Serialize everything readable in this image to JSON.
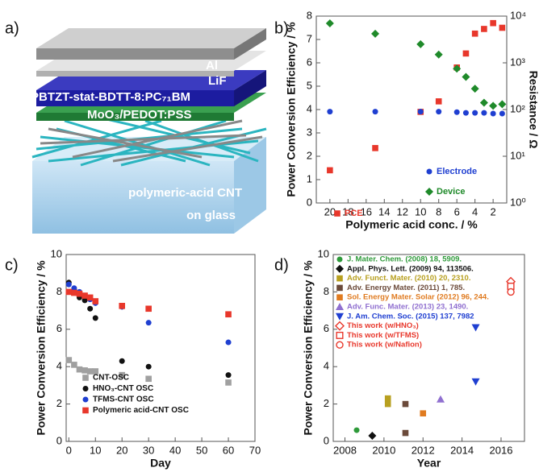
{
  "panels": [
    "a)",
    "b)",
    "c)",
    "d)"
  ],
  "device_stack": {
    "layers": [
      "Al",
      "LiF",
      "PBTZT-stat-BDTT-8:PC₇₁BM",
      "MoO₃/PEDOT:PSS"
    ],
    "substrate": [
      "polymeric-acid CNT",
      "on glass"
    ]
  },
  "chart_data": [
    {
      "type": "scatter",
      "x_label": "Polymeric acid conc. / %",
      "y_label": "Power Conversion Efficiency / %",
      "y2_label": "Resistance / Ω",
      "xlim": [
        21.5,
        0.5
      ],
      "xticks": [
        20,
        18,
        16,
        14,
        12,
        10,
        8,
        6,
        4,
        2
      ],
      "ylim": [
        0,
        8
      ],
      "yticks": [
        0,
        1,
        2,
        3,
        4,
        5,
        6,
        7,
        8
      ],
      "y2lim": [
        1,
        10000
      ],
      "y2_scale": "log",
      "y2ticks": [
        {
          "value": 1,
          "label": "10⁰"
        },
        {
          "value": 10,
          "label": "10¹"
        },
        {
          "value": 100,
          "label": "10²"
        },
        {
          "value": 1000,
          "label": "10³"
        },
        {
          "value": 10000,
          "label": "10⁴"
        }
      ],
      "series": [
        {
          "name": "PCE",
          "color": "#e8372b",
          "marker": "square",
          "x": [
            20,
            15,
            10,
            8,
            6,
            5,
            4,
            3,
            2,
            1
          ],
          "values": [
            1.4,
            2.35,
            3.9,
            4.35,
            5.8,
            6.4,
            7.25,
            7.45,
            7.7,
            7.5
          ]
        },
        {
          "name": "Electrode",
          "color": "#1f3fd1",
          "marker": "circle",
          "axis": "y2",
          "x": [
            20,
            15,
            10,
            8,
            6,
            5,
            4,
            3,
            2,
            1
          ],
          "values": [
            90,
            90,
            90,
            90,
            88,
            85,
            85,
            85,
            82,
            82
          ]
        },
        {
          "name": "Device",
          "color": "#1f8a2a",
          "marker": "diamond",
          "axis": "y2",
          "x": [
            20,
            15,
            10,
            8,
            6,
            5,
            4,
            3,
            2,
            1
          ],
          "values": [
            7000,
            4200,
            2500,
            1500,
            750,
            500,
            280,
            140,
            120,
            130
          ]
        }
      ]
    },
    {
      "type": "scatter",
      "x_label": "Day",
      "y_label": "Power Conversion Efficiency / %",
      "xlim": [
        -1,
        70
      ],
      "xticks": [
        0,
        10,
        20,
        30,
        40,
        50,
        60,
        70
      ],
      "ylim": [
        0,
        10
      ],
      "yticks": [
        0,
        2,
        4,
        6,
        8,
        10
      ],
      "series": [
        {
          "name": "CNT-OSC",
          "color": "#a0a0a0",
          "marker": "square",
          "x": [
            0,
            2,
            4,
            6,
            8,
            10,
            20,
            30,
            60
          ],
          "values": [
            4.35,
            4.1,
            3.85,
            3.8,
            3.75,
            3.75,
            3.55,
            3.35,
            3.15
          ]
        },
        {
          "name": "HNO₃-CNT OSC",
          "color": "#111111",
          "marker": "circle",
          "x": [
            0,
            2,
            4,
            6,
            8,
            10,
            20,
            30,
            60
          ],
          "values": [
            8.5,
            8.1,
            7.7,
            7.55,
            7.1,
            6.6,
            4.3,
            4.0,
            3.55
          ]
        },
        {
          "name": "TFMS-CNT OSC",
          "color": "#1f3fd1",
          "marker": "circle",
          "x": [
            0,
            2,
            4,
            6,
            8,
            10,
            20,
            30,
            60
          ],
          "values": [
            8.4,
            8.2,
            8.0,
            7.8,
            7.6,
            7.4,
            7.2,
            6.35,
            5.3
          ]
        },
        {
          "name": "Polymeric acid-CNT OSC",
          "color": "#e8372b",
          "marker": "square",
          "x": [
            0,
            2,
            4,
            6,
            8,
            10,
            20,
            30,
            60
          ],
          "values": [
            8.0,
            7.95,
            7.9,
            7.8,
            7.7,
            7.5,
            7.25,
            7.1,
            6.8
          ]
        }
      ]
    },
    {
      "type": "scatter",
      "x_label": "Year",
      "y_label": "Power Conversion Efficiency / %",
      "xlim": [
        2007.4,
        2017.2
      ],
      "xticks": [
        2008,
        2010,
        2012,
        2014,
        2016
      ],
      "ylim": [
        0,
        10
      ],
      "yticks": [
        0,
        2,
        4,
        6,
        8,
        10
      ],
      "series": [
        {
          "name": "J. Mater. Chem. (2008) 18, 5909.",
          "color": "#2e9a3a",
          "marker": "circle",
          "x": [
            2008.6
          ],
          "values": [
            0.6
          ]
        },
        {
          "name": "Appl. Phys. Lett. (2009) 94, 113506.",
          "color": "#111111",
          "marker": "diamond",
          "x": [
            2009.4
          ],
          "values": [
            0.3
          ]
        },
        {
          "name": "Adv. Funct. Mater. (2010) 20, 2310.",
          "color": "#b8a020",
          "marker": "square",
          "x": [
            2010.2,
            2010.2
          ],
          "values": [
            2.0,
            2.3
          ]
        },
        {
          "name": "Adv. Energy Mater. (2011) 1, 785.",
          "color": "#6b4a3a",
          "marker": "square",
          "x": [
            2011.1,
            2011.1
          ],
          "values": [
            2.0,
            0.45
          ]
        },
        {
          "name": "Sol. Energy Mater. Solar (2012) 96, 244.",
          "color": "#e07b20",
          "marker": "square",
          "x": [
            2012.0
          ],
          "values": [
            1.5
          ]
        },
        {
          "name": "Adv. Func. Mater. (2013) 23, 1490.",
          "color": "#9070d0",
          "marker": "triangle",
          "x": [
            2012.9
          ],
          "values": [
            2.25
          ]
        },
        {
          "name": "J. Am. Chem. Soc. (2015) 137, 7982",
          "color": "#1f3fd1",
          "marker": "triangle-down",
          "x": [
            2014.7,
            2014.7
          ],
          "values": [
            3.2,
            6.1
          ]
        },
        {
          "name": "This work (w/HNO₃)",
          "color": "#e8372b",
          "marker": "open-diamond",
          "x": [
            2016.5
          ],
          "values": [
            8.55
          ]
        },
        {
          "name": "This work (w/TFMS)",
          "color": "#e8372b",
          "marker": "open-square",
          "x": [
            2016.5
          ],
          "values": [
            8.3
          ]
        },
        {
          "name": "This work (w/Nafion)",
          "color": "#e8372b",
          "marker": "open-circle",
          "x": [
            2016.5
          ],
          "values": [
            8.0
          ]
        }
      ]
    }
  ]
}
